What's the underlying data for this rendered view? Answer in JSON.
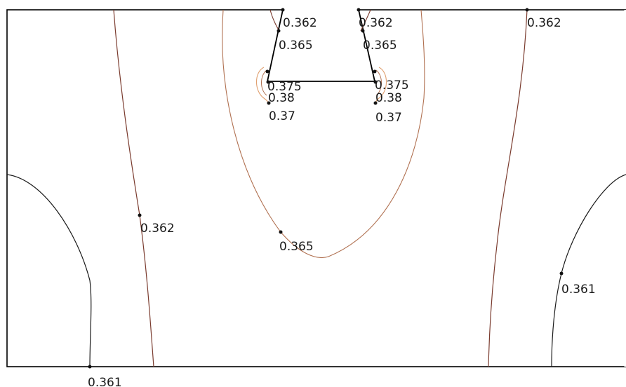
{
  "diagram": {
    "type": "contour-plot",
    "contour_labels": [
      {
        "id": "top-left-0362",
        "text": "0.362"
      },
      {
        "id": "top-mid-0362",
        "text": "0.362"
      },
      {
        "id": "top-right-0362",
        "text": "0.362"
      },
      {
        "id": "left-0365",
        "text": "0.365"
      },
      {
        "id": "right-0365",
        "text": "0.365"
      },
      {
        "id": "left-0375",
        "text": "0.375"
      },
      {
        "id": "right-0375",
        "text": "0.375"
      },
      {
        "id": "left-038",
        "text": "0.38"
      },
      {
        "id": "right-038",
        "text": "0.38"
      },
      {
        "id": "left-037",
        "text": "0.37"
      },
      {
        "id": "right-037",
        "text": "0.37"
      },
      {
        "id": "mid-left-0362",
        "text": "0.362"
      },
      {
        "id": "center-0365",
        "text": "0.365"
      },
      {
        "id": "right-0361",
        "text": "0.361"
      },
      {
        "id": "bottom-0361",
        "text": "0.361"
      }
    ],
    "colors": {
      "boundary": "#000000",
      "contour_dark": "#1a1a1a",
      "contour_brown": "#7a3b2e",
      "contour_light_brown": "#b07050",
      "contour_orange": "#e0a070"
    }
  }
}
